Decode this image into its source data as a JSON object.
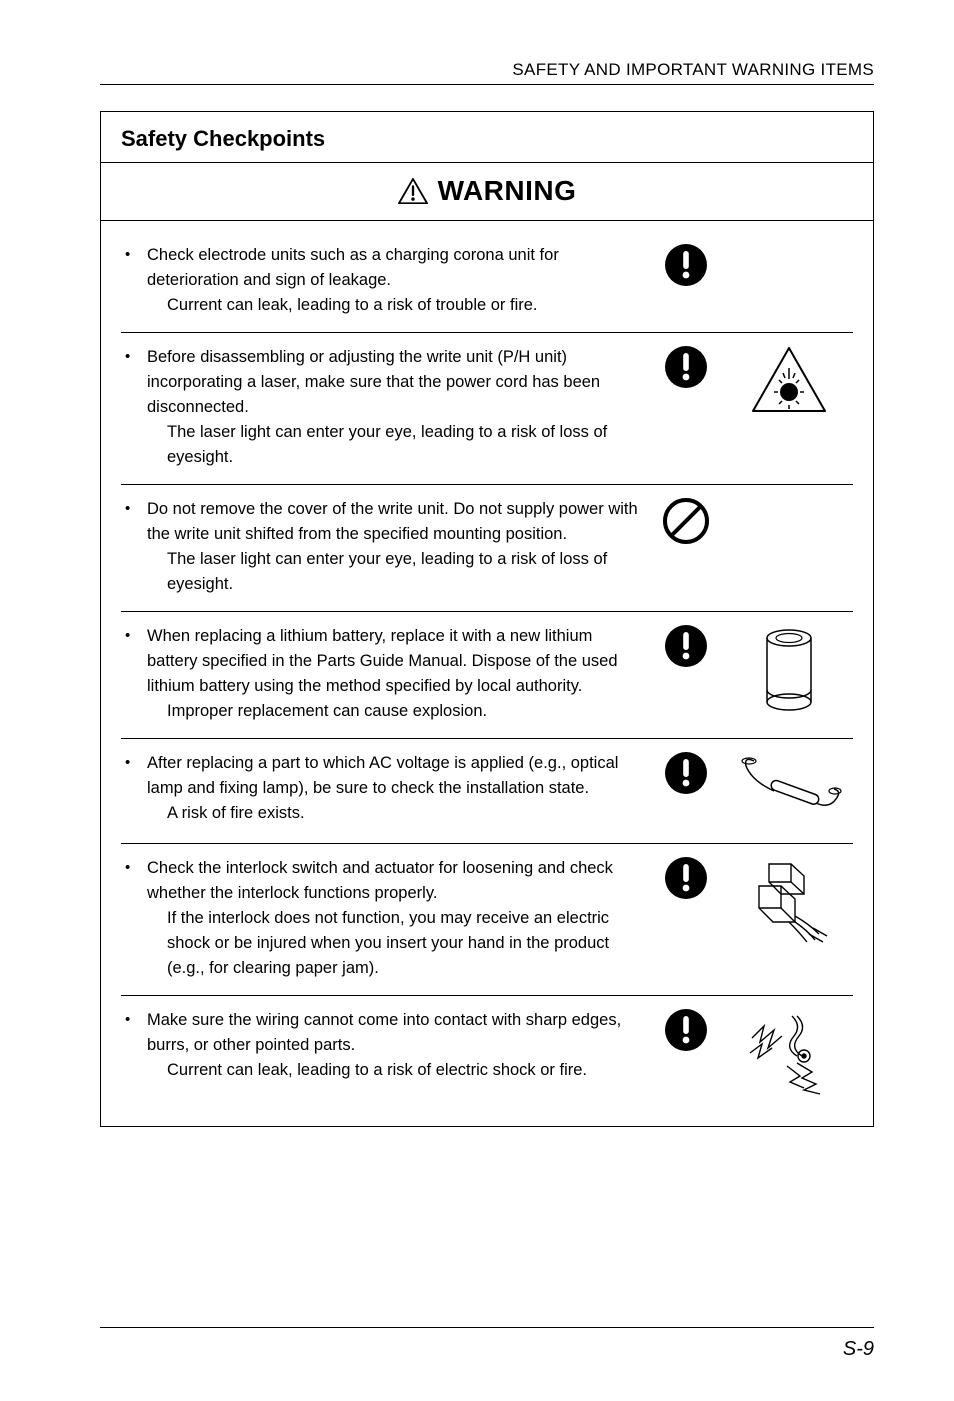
{
  "header": "SAFETY AND IMPORTANT WARNING ITEMS",
  "section_title": "Safety Checkpoints",
  "warning_label": "WARNING",
  "footer": "S-9",
  "items": [
    {
      "main": "Check electrode units such as a charging corona unit for deterioration and sign of leakage.",
      "sub": "Current can leak, leading to a risk of trouble or fire.",
      "icon1": "mandatory",
      "icon2": null
    },
    {
      "main": "Before disassembling or adjusting the write unit (P/H unit) incorporating a laser, make sure that the power cord has been disconnected.",
      "sub": "The laser light can enter your eye, leading to a risk of loss of eyesight.",
      "icon1": "mandatory",
      "icon2": "laser"
    },
    {
      "main": "Do not remove the cover of the write unit. Do not supply power with the write unit shifted from the specified mounting position.",
      "sub": "The laser light can enter your eye, leading to a risk of loss of eyesight.",
      "icon1": "prohibit",
      "icon2": null
    },
    {
      "main": "When replacing a lithium battery, replace it with a new lithium battery specified in the Parts Guide Manual. Dispose of the used lithium battery using the method specified by local authority.",
      "sub": "Improper replacement can cause explosion.",
      "icon1": "mandatory",
      "icon2": "battery"
    },
    {
      "main": "After replacing a part to which AC voltage is applied (e.g., optical lamp and fixing lamp), be sure to check the installation state.",
      "sub": "A risk of fire exists.",
      "icon1": "mandatory",
      "icon2": "lamp"
    },
    {
      "main": "Check the interlock switch and actuator for loosening and check whether the interlock functions properly.",
      "sub": "If the interlock does not function, you may receive an electric shock or be injured when you insert your hand in the product (e.g., for clearing paper jam).",
      "icon1": "mandatory",
      "icon2": "interlock"
    },
    {
      "main": "Make sure the wiring cannot come into contact with sharp edges, burrs, or other pointed parts.",
      "sub": "Current can leak, leading to a risk of electric shock or fire.",
      "icon1": "mandatory",
      "icon2": "wiring"
    }
  ]
}
